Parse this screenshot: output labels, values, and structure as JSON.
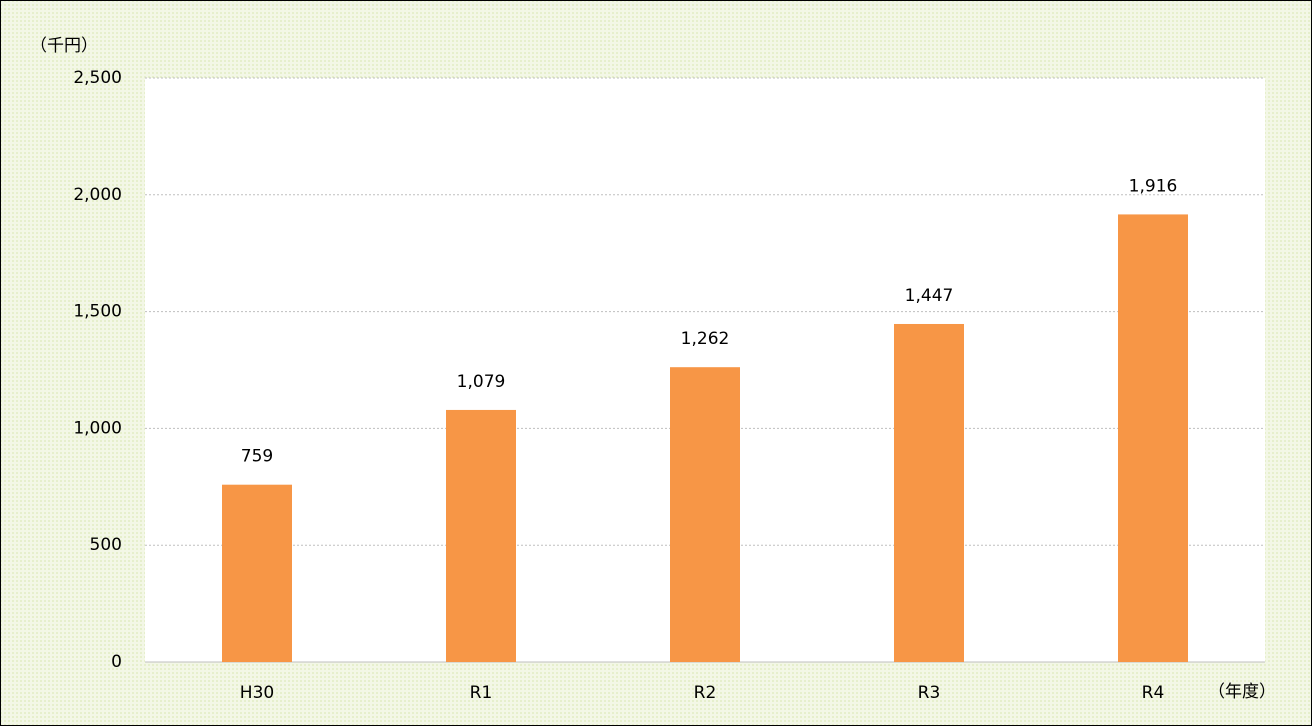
{
  "chart_data": {
    "type": "bar",
    "y_unit": "（千円）",
    "x_unit": "（年度）",
    "categories": [
      "H30",
      "R1",
      "R2",
      "R3",
      "R4"
    ],
    "values": [
      759,
      1079,
      1262,
      1447,
      1916
    ],
    "value_labels": [
      "759",
      "1,079",
      "1,262",
      "1,447",
      "1,916"
    ],
    "color": "#f79646",
    "ylim": [
      0,
      2500
    ],
    "yticks": [
      0,
      500,
      {
        "value": 1000,
        "label": "1,000"
      },
      {
        "value": 1500,
        "label": "1,500"
      },
      {
        "value": 2000,
        "label": "2,000"
      },
      {
        "value": 2500,
        "label": "2,500"
      }
    ],
    "grid": true
  }
}
